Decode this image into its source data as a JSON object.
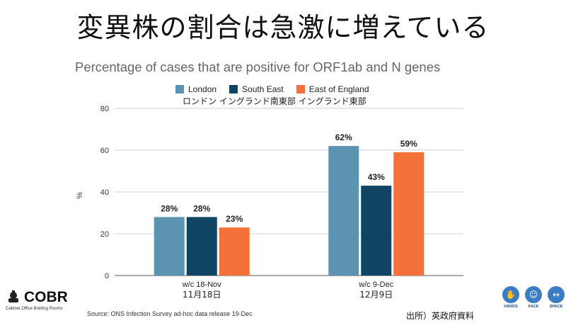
{
  "slide": {
    "title": "変異株の割合は急激に増えている"
  },
  "chart_data": {
    "type": "bar",
    "title": "Percentage of cases that are positive for ORF1ab and N genes",
    "categories": [
      "w/c 18-Nov",
      "w/c 9-Dec"
    ],
    "categories_jp": [
      "11月18日",
      "12月9日"
    ],
    "series": [
      {
        "name": "London",
        "name_jp": "ロンドン",
        "color": "#5b93b0",
        "values": [
          28,
          62
        ],
        "labels": [
          "28%",
          "62%"
        ]
      },
      {
        "name": "South East",
        "name_jp": "イングランド南東部",
        "color": "#0f4562",
        "values": [
          28,
          43
        ],
        "labels": [
          "28%",
          "43%"
        ]
      },
      {
        "name": "East of England",
        "name_jp": "イングランド東部",
        "color": "#f5713a",
        "values": [
          23,
          59
        ],
        "labels": [
          "23%",
          "59%"
        ]
      }
    ],
    "xlabel": "",
    "ylabel": "%",
    "ylim": [
      0,
      80
    ],
    "yticks": [
      0,
      20,
      40,
      60,
      80
    ],
    "grid": true,
    "legend": "top-center"
  },
  "legend_jp": "ロンドン イングランド南東部  イングランド東部",
  "footer": {
    "logo_text": "COBR",
    "logo_sub": "Cabinet Office Briefing Rooms",
    "source": "Source: ONS Infection Survey ad-hoc data release 19-Dec",
    "credit": "出所）英政府資料",
    "hfs": [
      "HANDS",
      "FACE",
      "SPACE"
    ]
  }
}
